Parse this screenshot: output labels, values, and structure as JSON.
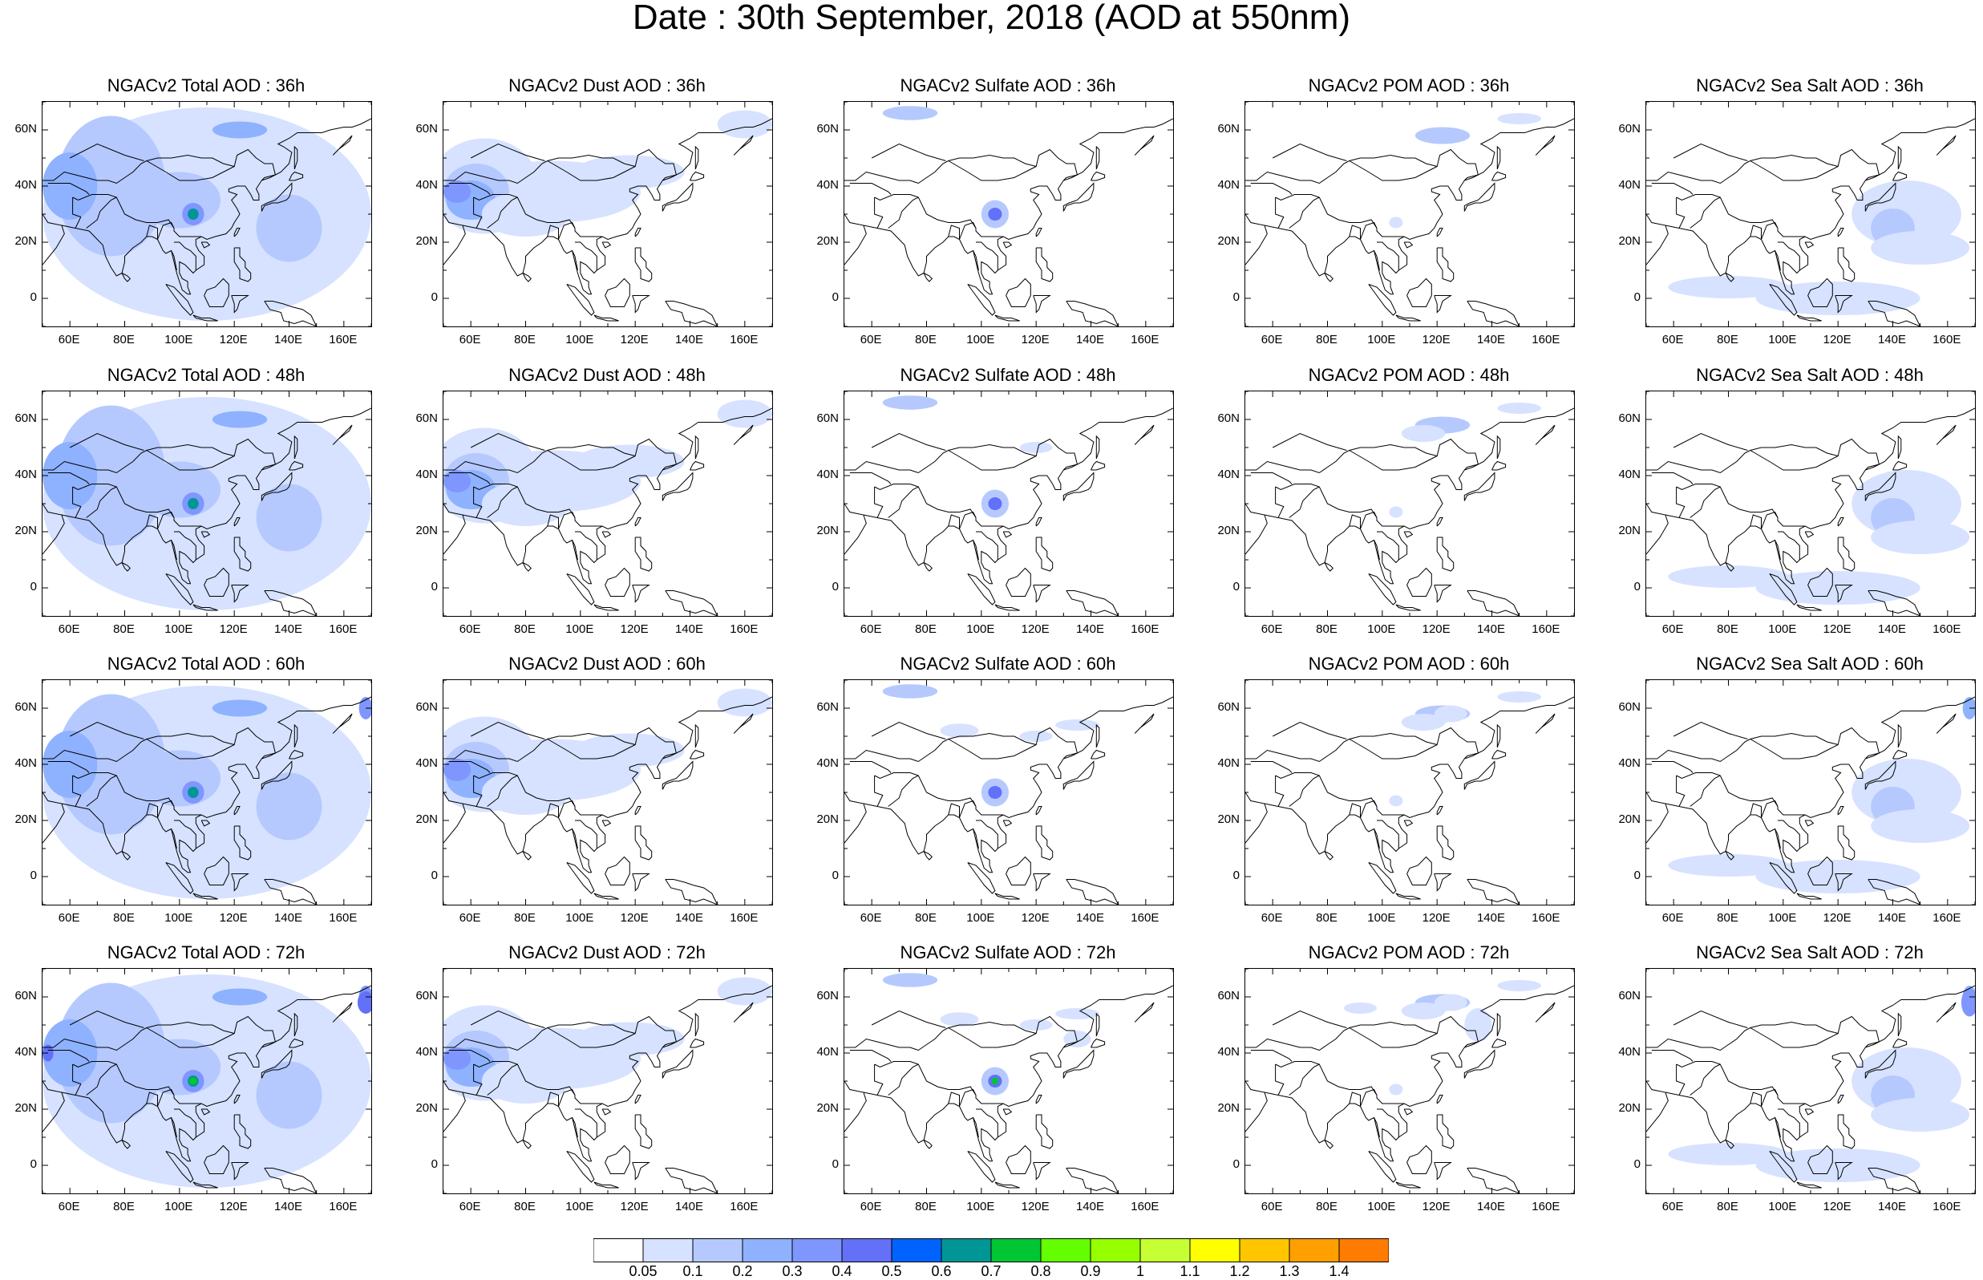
{
  "title": "Date : 30th September, 2018 (AOD at 550nm)",
  "panels": [
    [
      "NGACv2 Total AOD : 36h",
      "NGACv2 Dust AOD : 36h",
      "NGACv2 Sulfate AOD : 36h",
      "NGACv2 POM AOD : 36h",
      "NGACv2 Sea Salt AOD : 36h"
    ],
    [
      "NGACv2 Total AOD : 48h",
      "NGACv2 Dust AOD : 48h",
      "NGACv2 Sulfate AOD : 48h",
      "NGACv2 POM AOD : 48h",
      "NGACv2 Sea Salt AOD : 48h"
    ],
    [
      "NGACv2 Total AOD : 60h",
      "NGACv2 Dust AOD : 60h",
      "NGACv2 Sulfate AOD : 60h",
      "NGACv2 POM AOD : 60h",
      "NGACv2 Sea Salt AOD : 60h"
    ],
    [
      "NGACv2 Total AOD : 72h",
      "NGACv2 Dust AOD : 72h",
      "NGACv2 Sulfate AOD : 72h",
      "NGACv2 POM AOD : 72h",
      "NGACv2 Sea Salt  AOD : 72h"
    ]
  ],
  "x_ticks": [
    "60E",
    "80E",
    "100E",
    "120E",
    "140E",
    "160E"
  ],
  "y_ticks": [
    "60N",
    "40N",
    "20N",
    "0"
  ],
  "colorbar": {
    "labels": [
      "0.05",
      "0.1",
      "0.2",
      "0.3",
      "0.4",
      "0.5",
      "0.6",
      "0.7",
      "0.8",
      "0.9",
      "1",
      "1.1",
      "1.2",
      "1.3",
      "1.4"
    ],
    "colors": [
      "#ffffff",
      "#d6e2ff",
      "#b5c9ff",
      "#8eb2ff",
      "#7f96ff",
      "#6370f8",
      "#0063ff",
      "#009696",
      "#00c633",
      "#63ff00",
      "#96ff00",
      "#c6ff33",
      "#ffff00",
      "#ffc600",
      "#ffa000",
      "#ff7c00",
      "#ff1900"
    ]
  }
}
